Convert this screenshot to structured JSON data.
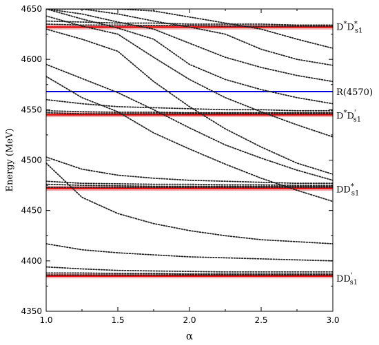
{
  "chart_data": {
    "type": "line",
    "xlabel": "α",
    "ylabel": "Energy (MeV)",
    "xlim": [
      1.0,
      3.0
    ],
    "ylim": [
      4350,
      4650
    ],
    "x_ticks": [
      "1.0",
      "1.5",
      "2.0",
      "2.5",
      "3.0"
    ],
    "y_ticks": [
      "4350",
      "4400",
      "4450",
      "4500",
      "4550",
      "4600",
      "4650"
    ],
    "thresholds": [
      {
        "energy": 4632,
        "color": "#e00000",
        "label": {
          "base": "D",
          "sup1": "*",
          "mid": "D",
          "sub": "s1",
          "sup2": "*"
        }
      },
      {
        "energy": 4545,
        "color": "#e00000",
        "label": {
          "base": "D",
          "sup1": "*",
          "mid": "D",
          "sub": "s1",
          "sup2": "'"
        }
      },
      {
        "energy": 4472,
        "color": "#e00000",
        "label": {
          "base": "",
          "sup1": "",
          "mid": "DD",
          "sub": "s1",
          "sup2": "*"
        }
      },
      {
        "energy": 4385,
        "color": "#e00000",
        "label": {
          "base": "",
          "sup1": "",
          "mid": "DD",
          "sub": "s1",
          "sup2": "'"
        }
      }
    ],
    "resonance": {
      "energy": 4568,
      "color": "#0000e0",
      "label": "R(4570)"
    },
    "x": [
      1.0,
      1.25,
      1.5,
      1.75,
      2.0,
      2.25,
      2.5,
      2.75,
      3.0
    ],
    "series": [
      {
        "values": [
          4386,
          4386,
          4386,
          4386,
          4386,
          4386,
          4386,
          4386,
          4386
        ]
      },
      {
        "values": [
          4388,
          4388,
          4387.5,
          4387.5,
          4387,
          4387,
          4387,
          4387,
          4387
        ]
      },
      {
        "values": [
          4394,
          4392,
          4390.5,
          4390,
          4389.5,
          4389,
          4389,
          4389,
          4389
        ]
      },
      {
        "values": [
          4417,
          4411,
          4408,
          4406,
          4404,
          4403,
          4402,
          4401,
          4400
        ]
      },
      {
        "values": [
          4497,
          4463,
          4447,
          4437,
          4430,
          4425,
          4421,
          4419,
          4417
        ]
      },
      {
        "values": [
          4473,
          4473,
          4473,
          4473,
          4473,
          4473,
          4473,
          4473,
          4473
        ]
      },
      {
        "values": [
          4476,
          4475,
          4474.5,
          4474,
          4474,
          4474,
          4474,
          4474,
          4474
        ]
      },
      {
        "values": [
          4479,
          4477,
          4476.5,
          4476,
          4476,
          4475.5,
          4475.5,
          4475,
          4475
        ]
      },
      {
        "values": [
          4503,
          4491,
          4485,
          4482,
          4480,
          4479,
          4478,
          4477,
          4477
        ]
      },
      {
        "values": [
          4547,
          4546,
          4546,
          4546,
          4546,
          4546,
          4546,
          4546,
          4546
        ]
      },
      {
        "values": [
          4549,
          4548,
          4547.5,
          4547.5,
          4547,
          4547,
          4547,
          4547,
          4547
        ]
      },
      {
        "values": [
          4560,
          4556,
          4553,
          4552,
          4551,
          4550,
          4550,
          4549,
          4549
        ]
      },
      {
        "values": [
          4583,
          4562,
          4548,
          4527,
          4511,
          4496,
          4482,
          4470,
          4459
        ]
      },
      {
        "values": [
          4595,
          4581,
          4567,
          4550,
          4532,
          4515,
          4502,
          4490,
          4480
        ]
      },
      {
        "values": [
          4630,
          4620,
          4608,
          4578,
          4553,
          4531,
          4513,
          4497,
          4486
        ]
      },
      {
        "values": [
          4643,
          4633,
          4625,
          4602,
          4580,
          4562,
          4548,
          4535,
          4523
        ]
      },
      {
        "values": [
          4650,
          4640,
          4631,
          4620,
          4595,
          4580,
          4570,
          4562,
          4556
        ]
      },
      {
        "values": [
          4650,
          4645,
          4637,
          4630,
          4616,
          4602,
          4592,
          4584,
          4578
        ]
      },
      {
        "values": [
          4650,
          4650,
          4645,
          4638,
          4632,
          4625,
          4610,
          4600,
          4594
        ]
      },
      {
        "values": [
          4650,
          4650,
          4650,
          4648,
          4642,
          4636,
          4630,
          4620,
          4611
        ]
      },
      {
        "values": [
          4635,
          4634,
          4634,
          4633.5,
          4633.5,
          4633,
          4633,
          4633,
          4633
        ]
      },
      {
        "values": [
          4638,
          4637,
          4636,
          4636,
          4635,
          4635,
          4635,
          4634,
          4634
        ]
      }
    ]
  }
}
